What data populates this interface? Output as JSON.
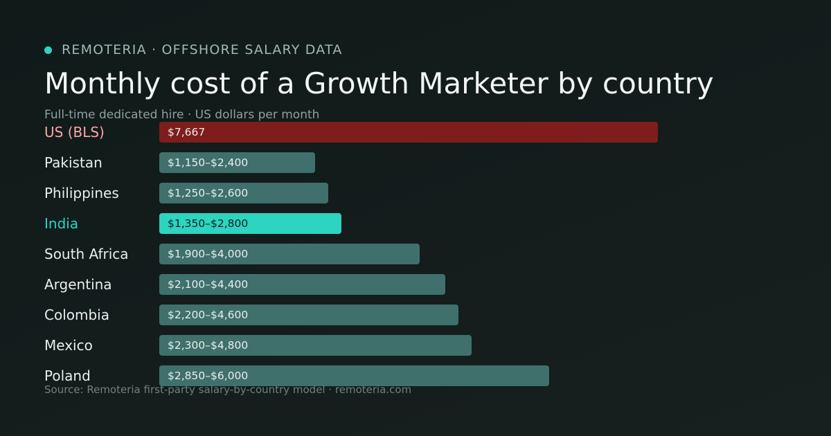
{
  "header": {
    "brand": "REMOTERIA · OFFSHORE SALARY DATA",
    "title": "Monthly cost of a Growth Marketer by country",
    "subtitle": "Full-time dedicated hire · US dollars per month"
  },
  "footer": {
    "source": "Source: Remoteria first-party salary-by-country model · remoteria.com"
  },
  "colors": {
    "background": "#121b1a",
    "accent": "#2dd4bf",
    "benchmark_bar": "#7f1d1d",
    "benchmark_label": "#fca5a5",
    "default_bar": "#3f706b",
    "highlight_text": "#0d1f1c"
  },
  "chart_data": {
    "type": "bar",
    "orientation": "horizontal",
    "title": "Monthly cost of a Growth Marketer by country",
    "subtitle": "Full-time dedicated hire · US dollars per month",
    "unit": "US dollars per month",
    "categories": [
      "US (BLS)",
      "Pakistan",
      "Philippines",
      "India",
      "South Africa",
      "Argentina",
      "Colombia",
      "Mexico",
      "Poland"
    ],
    "min_values": [
      7667,
      1150,
      1250,
      1350,
      1900,
      2100,
      2200,
      2300,
      2850
    ],
    "max_values": [
      7667,
      2400,
      2600,
      2800,
      4000,
      4400,
      4600,
      4800,
      6000
    ],
    "value_labels": [
      "$7,667",
      "$1,150–$2,400",
      "$1,250–$2,600",
      "$1,350–$2,800",
      "$1,900–$4,000",
      "$2,100–$4,400",
      "$2,200–$4,600",
      "$2,300–$4,800",
      "$2,850–$6,000"
    ],
    "bar_value": "max",
    "xlim": [
      0,
      7667
    ],
    "highlight": {
      "benchmark": "US (BLS)",
      "featured": "India"
    },
    "grid": false,
    "legend": "none"
  }
}
